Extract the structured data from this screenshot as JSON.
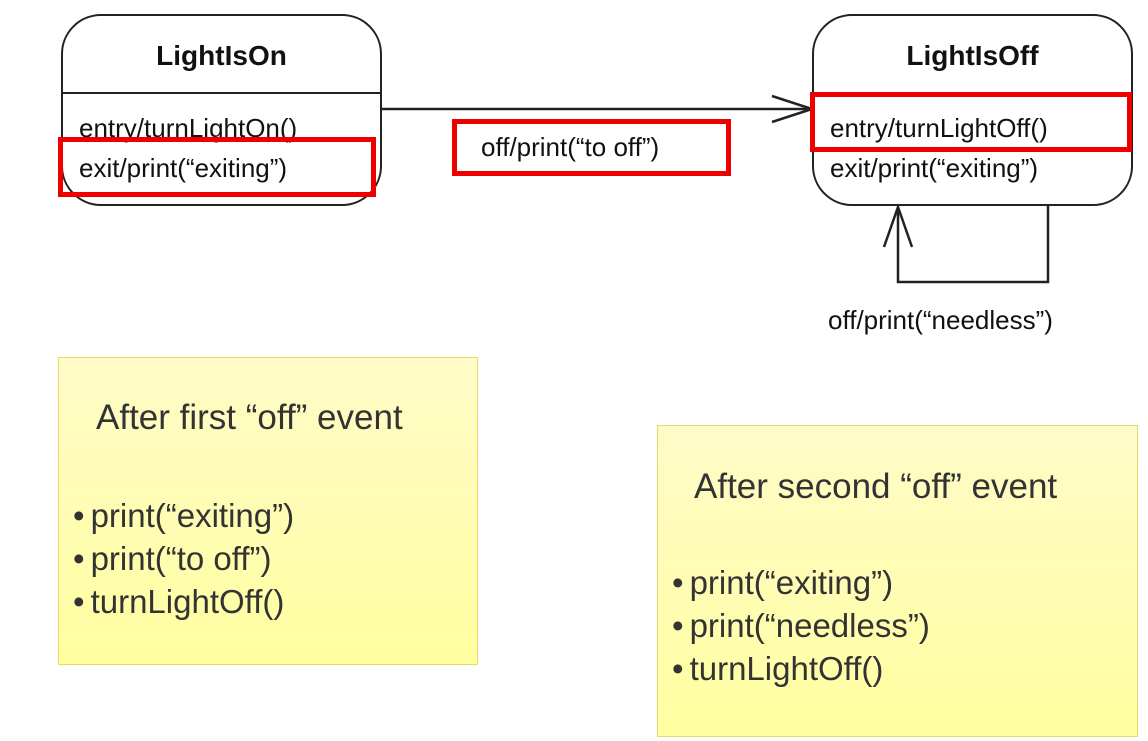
{
  "states": {
    "on": {
      "name": "LightIsOn",
      "entry": "entry/turnLightOn()",
      "exit": "exit/print(“exiting”)"
    },
    "off": {
      "name": "LightIsOff",
      "entry": "entry/turnLightOff()",
      "exit": "exit/print(“exiting”)"
    }
  },
  "transitions": {
    "on_to_off": "off/print(“to off”)",
    "self_off": "off/print(“needless”)"
  },
  "notes": {
    "first": {
      "title": "After first “off” event",
      "items": [
        "print(“exiting”)",
        "print(“to off”)",
        "turnLightOff()"
      ]
    },
    "second": {
      "title": "After second “off” event",
      "items": [
        "print(“exiting”)",
        "print(“needless”)",
        "turnLightOff()"
      ]
    }
  },
  "colors": {
    "highlight": "#e00000",
    "note_fill": "#ffffa8"
  }
}
